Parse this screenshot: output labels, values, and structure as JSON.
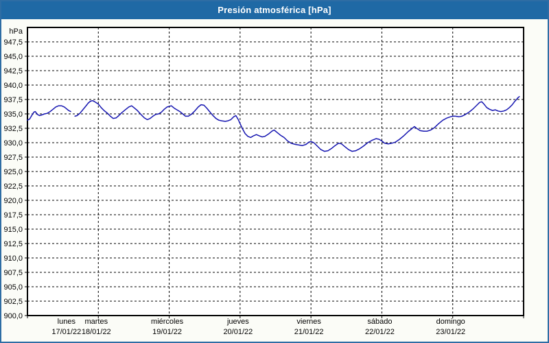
{
  "window": {
    "title": "Presión atmosférica [hPa]"
  },
  "colors": {
    "title_bar": "#1f69a5",
    "outer_border": "#2e6da4",
    "page_background": "#fbfcf7",
    "plot_background": "#ffffff",
    "plot_border": "#000000",
    "grid": "#000000",
    "line": "#1414b0",
    "text": "#000000"
  },
  "chart_data": {
    "type": "line",
    "title": "Presión atmosférica [hPa]",
    "ylabel": "hPa",
    "ylim": [
      900.0,
      950.0
    ],
    "ytick_step": 2.5,
    "ytick_labels": [
      "900,0",
      "902,5",
      "905,0",
      "907,5",
      "910,0",
      "912,5",
      "915,0",
      "917,5",
      "920,0",
      "922,5",
      "925,0",
      "927,5",
      "930,0",
      "932,5",
      "935,0",
      "937,5",
      "940,0",
      "942,5",
      "945,0",
      "947,5"
    ],
    "grid": "dashed",
    "legend": "none",
    "days": [
      {
        "weekday": "lunes",
        "date": "17/01/22"
      },
      {
        "weekday": "martes",
        "date": "18/01/22"
      },
      {
        "weekday": "miércoles",
        "date": "19/01/22"
      },
      {
        "weekday": "jueves",
        "date": "20/01/22"
      },
      {
        "weekday": "viernes",
        "date": "21/01/22"
      },
      {
        "weekday": "sábado",
        "date": "22/01/22"
      },
      {
        "weekday": "domingo",
        "date": "23/01/22"
      }
    ],
    "series": [
      {
        "name": "Presión atmosférica",
        "x_unit": "days_from_start",
        "points": [
          [
            0.0,
            933.9
          ],
          [
            0.03,
            934.1
          ],
          [
            0.06,
            934.7
          ],
          [
            0.09,
            935.3
          ],
          [
            0.11,
            935.4
          ],
          [
            0.14,
            934.9
          ],
          [
            0.17,
            934.7
          ],
          [
            0.2,
            934.8
          ],
          [
            0.24,
            935.0
          ],
          [
            0.28,
            935.1
          ],
          [
            0.32,
            935.4
          ],
          [
            0.36,
            935.8
          ],
          [
            0.4,
            936.2
          ],
          [
            0.44,
            936.4
          ],
          [
            0.48,
            936.4
          ],
          [
            0.52,
            936.2
          ],
          [
            0.55,
            935.9
          ],
          [
            0.58,
            935.6
          ],
          [
            0.61,
            935.4
          ],
          [
            0.64,
            null
          ],
          [
            0.67,
            934.6
          ],
          [
            0.7,
            934.7
          ],
          [
            0.74,
            935.1
          ],
          [
            0.78,
            935.7
          ],
          [
            0.82,
            936.3
          ],
          [
            0.86,
            936.9
          ],
          [
            0.89,
            937.2
          ],
          [
            0.92,
            937.3
          ],
          [
            0.95,
            937.1
          ],
          [
            1.0,
            936.7
          ],
          [
            1.04,
            936.1
          ],
          [
            1.08,
            935.6
          ],
          [
            1.13,
            935.1
          ],
          [
            1.17,
            934.6
          ],
          [
            1.21,
            934.2
          ],
          [
            1.25,
            934.3
          ],
          [
            1.29,
            934.7
          ],
          [
            1.33,
            935.2
          ],
          [
            1.38,
            935.7
          ],
          [
            1.43,
            936.2
          ],
          [
            1.47,
            936.4
          ],
          [
            1.51,
            936.0
          ],
          [
            1.55,
            935.6
          ],
          [
            1.6,
            934.9
          ],
          [
            1.65,
            934.3
          ],
          [
            1.69,
            934.0
          ],
          [
            1.73,
            934.2
          ],
          [
            1.77,
            934.6
          ],
          [
            1.81,
            934.9
          ],
          [
            1.85,
            935.0
          ],
          [
            1.89,
            935.3
          ],
          [
            1.93,
            935.8
          ],
          [
            1.97,
            936.2
          ],
          [
            2.0,
            936.3
          ],
          [
            2.03,
            936.4
          ],
          [
            2.07,
            936.0
          ],
          [
            2.11,
            935.7
          ],
          [
            2.15,
            935.4
          ],
          [
            2.19,
            935.0
          ],
          [
            2.23,
            934.6
          ],
          [
            2.27,
            934.6
          ],
          [
            2.31,
            934.9
          ],
          [
            2.36,
            935.5
          ],
          [
            2.41,
            936.2
          ],
          [
            2.45,
            936.6
          ],
          [
            2.49,
            936.5
          ],
          [
            2.53,
            936.0
          ],
          [
            2.57,
            935.4
          ],
          [
            2.61,
            934.8
          ],
          [
            2.66,
            934.2
          ],
          [
            2.7,
            933.9
          ],
          [
            2.74,
            933.8
          ],
          [
            2.79,
            933.7
          ],
          [
            2.83,
            933.8
          ],
          [
            2.87,
            934.0
          ],
          [
            2.91,
            934.5
          ],
          [
            2.94,
            934.7
          ],
          [
            2.97,
            934.1
          ],
          [
            3.0,
            933.3
          ],
          [
            3.03,
            932.5
          ],
          [
            3.07,
            931.6
          ],
          [
            3.11,
            931.1
          ],
          [
            3.15,
            930.9
          ],
          [
            3.19,
            931.2
          ],
          [
            3.23,
            931.4
          ],
          [
            3.27,
            931.2
          ],
          [
            3.31,
            931.0
          ],
          [
            3.35,
            931.1
          ],
          [
            3.4,
            931.5
          ],
          [
            3.45,
            932.0
          ],
          [
            3.48,
            932.2
          ],
          [
            3.52,
            931.8
          ],
          [
            3.57,
            931.3
          ],
          [
            3.62,
            930.9
          ],
          [
            3.67,
            930.3
          ],
          [
            3.72,
            929.9
          ],
          [
            3.78,
            929.7
          ],
          [
            3.83,
            929.6
          ],
          [
            3.88,
            929.5
          ],
          [
            3.93,
            929.7
          ],
          [
            3.97,
            930.1
          ],
          [
            4.0,
            930.2
          ],
          [
            4.04,
            930.0
          ],
          [
            4.09,
            929.4
          ],
          [
            4.14,
            928.8
          ],
          [
            4.19,
            928.5
          ],
          [
            4.24,
            928.6
          ],
          [
            4.29,
            929.0
          ],
          [
            4.34,
            929.5
          ],
          [
            4.39,
            929.9
          ],
          [
            4.43,
            929.8
          ],
          [
            4.48,
            929.3
          ],
          [
            4.53,
            928.8
          ],
          [
            4.58,
            928.5
          ],
          [
            4.63,
            928.6
          ],
          [
            4.68,
            928.9
          ],
          [
            4.74,
            929.4
          ],
          [
            4.8,
            930.0
          ],
          [
            4.86,
            930.4
          ],
          [
            4.92,
            930.7
          ],
          [
            4.96,
            930.6
          ],
          [
            5.0,
            930.3
          ],
          [
            5.04,
            929.9
          ],
          [
            5.09,
            929.8
          ],
          [
            5.14,
            929.9
          ],
          [
            5.19,
            930.1
          ],
          [
            5.25,
            930.6
          ],
          [
            5.31,
            931.2
          ],
          [
            5.37,
            931.9
          ],
          [
            5.43,
            932.5
          ],
          [
            5.46,
            932.8
          ],
          [
            5.5,
            932.4
          ],
          [
            5.54,
            932.1
          ],
          [
            5.59,
            932.0
          ],
          [
            5.64,
            932.0
          ],
          [
            5.69,
            932.2
          ],
          [
            5.74,
            932.6
          ],
          [
            5.8,
            933.3
          ],
          [
            5.86,
            933.9
          ],
          [
            5.92,
            934.3
          ],
          [
            5.97,
            934.5
          ],
          [
            6.0,
            934.6
          ],
          [
            6.04,
            934.6
          ],
          [
            6.09,
            934.5
          ],
          [
            6.13,
            934.6
          ],
          [
            6.18,
            934.9
          ],
          [
            6.23,
            935.3
          ],
          [
            6.29,
            935.9
          ],
          [
            6.34,
            936.5
          ],
          [
            6.38,
            937.0
          ],
          [
            6.41,
            937.1
          ],
          [
            6.44,
            936.7
          ],
          [
            6.48,
            936.1
          ],
          [
            6.52,
            935.8
          ],
          [
            6.56,
            935.6
          ],
          [
            6.6,
            935.7
          ],
          [
            6.64,
            935.5
          ],
          [
            6.68,
            935.4
          ],
          [
            6.72,
            935.5
          ],
          [
            6.76,
            935.7
          ],
          [
            6.8,
            936.1
          ],
          [
            6.84,
            936.6
          ],
          [
            6.87,
            937.1
          ],
          [
            6.9,
            937.5
          ],
          [
            6.92,
            937.8
          ],
          [
            6.94,
            938.0
          ]
        ]
      }
    ]
  }
}
